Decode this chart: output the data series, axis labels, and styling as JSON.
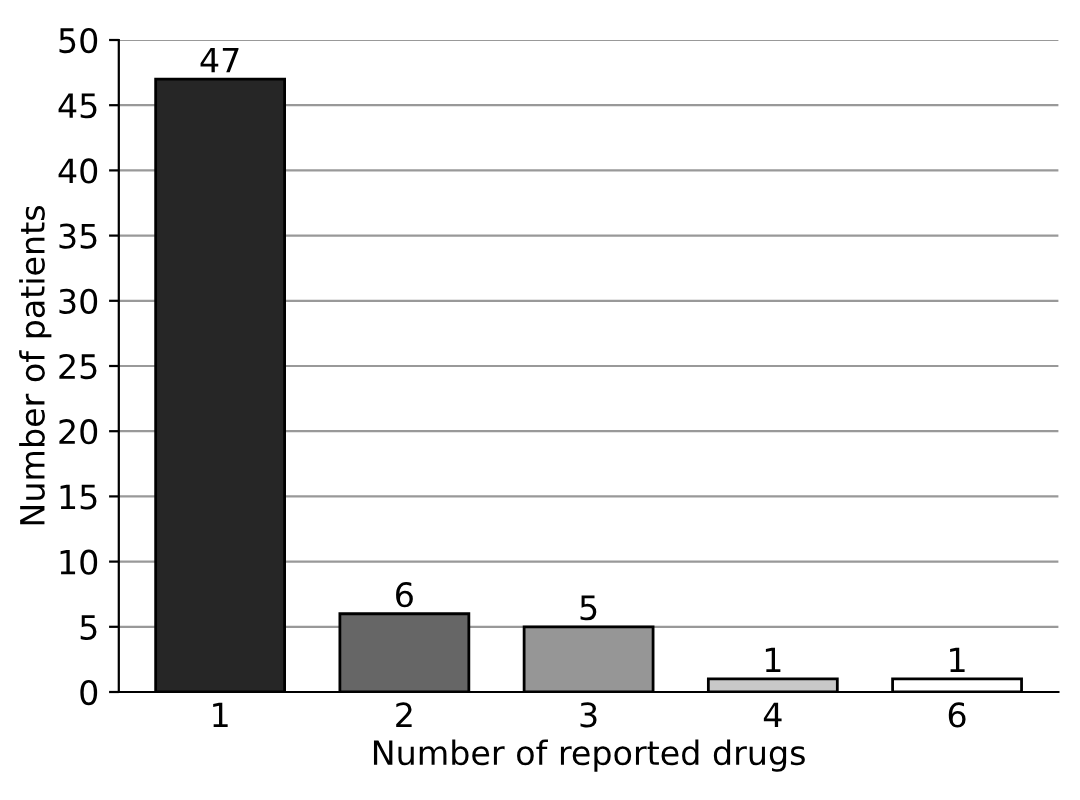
{
  "chart_data": {
    "type": "bar",
    "xlabel": "Number of reported drugs",
    "ylabel": "Number of patients",
    "categories": [
      "1",
      "2",
      "3",
      "4",
      "6"
    ],
    "values": [
      47,
      6,
      5,
      1,
      1
    ],
    "colors": [
      "#262626",
      "#666666",
      "#969696",
      "#c8c8c8",
      "#ffffff"
    ],
    "ylim": [
      0,
      50
    ],
    "yticks": [
      0,
      5,
      10,
      15,
      20,
      25,
      30,
      35,
      40,
      45,
      50
    ],
    "grid": "y",
    "data_labels": true
  }
}
